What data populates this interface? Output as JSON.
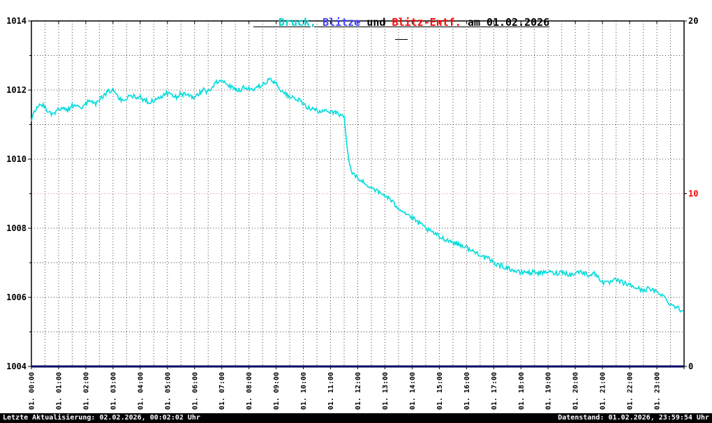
{
  "title": {
    "full": "Druck, Blitze und Blitz-Entf. am 01.02.2026",
    "parts": [
      {
        "text": "Druck,",
        "color": "#00cfcf"
      },
      {
        "text": " Blitze",
        "color": "#4040ff"
      },
      {
        "text": " und ",
        "color": "#000000"
      },
      {
        "text": "Blitz-Entf.",
        "color": "#ff0000"
      },
      {
        "text": " am 01.02.2026",
        "color": "#000000"
      }
    ]
  },
  "footer": {
    "left": "Letzte Aktualisierung: 02.02.2026, 00:02:02 Uhr",
    "right": "Datenstand: 01.02.2026, 23:59:54 Uhr"
  },
  "chart_data": {
    "type": "line",
    "title": "Druck, Blitze und Blitz-Entf. am 01.02.2026",
    "grid": "dotted",
    "x_axis": {
      "start_minute": 0,
      "end_minute": 1440,
      "grid_interval_minutes": 30,
      "tick_labels": [
        "01. 00:00",
        "01. 01:00",
        "01. 02:00",
        "01. 03:00",
        "01. 04:00",
        "01. 05:00",
        "01. 06:00",
        "01. 07:00",
        "01. 08:00",
        "01. 09:00",
        "01. 10:00",
        "01. 11:00",
        "01. 12:00",
        "01. 13:00",
        "01. 14:00",
        "01. 15:00",
        "01. 16:00",
        "01. 17:00",
        "01. 18:00",
        "01. 19:00",
        "01. 20:00",
        "01. 21:00",
        "01. 22:00",
        "01. 23:00"
      ]
    },
    "left_axis": {
      "min": 1004,
      "max": 1014,
      "grid_step": 1,
      "ticks": [
        1004,
        1006,
        1008,
        1010,
        1012,
        1014
      ]
    },
    "right_axis": {
      "min": 0,
      "max": 20,
      "ticks": [
        {
          "value": 0,
          "label": "0",
          "color": "#000000"
        },
        {
          "value": 10,
          "label": "10",
          "color": "#ff0000"
        },
        {
          "value": 20,
          "label": "20",
          "color": "#000000"
        }
      ],
      "highlight_tick": 10,
      "highlight_color": "#ee8888"
    },
    "series": [
      {
        "name": "Druck",
        "color": "#00dcdc",
        "axis": "left",
        "style": {
          "width": 1.6,
          "noise": 0.14
        },
        "points": [
          [
            0,
            1011.15
          ],
          [
            10,
            1011.45
          ],
          [
            20,
            1011.6
          ],
          [
            30,
            1011.5
          ],
          [
            40,
            1011.35
          ],
          [
            50,
            1011.3
          ],
          [
            60,
            1011.45
          ],
          [
            70,
            1011.5
          ],
          [
            80,
            1011.4
          ],
          [
            90,
            1011.55
          ],
          [
            100,
            1011.6
          ],
          [
            110,
            1011.5
          ],
          [
            120,
            1011.6
          ],
          [
            130,
            1011.7
          ],
          [
            140,
            1011.6
          ],
          [
            150,
            1011.7
          ],
          [
            160,
            1011.85
          ],
          [
            170,
            1011.95
          ],
          [
            180,
            1012.0
          ],
          [
            190,
            1011.8
          ],
          [
            200,
            1011.7
          ],
          [
            210,
            1011.75
          ],
          [
            220,
            1011.85
          ],
          [
            230,
            1011.8
          ],
          [
            240,
            1011.8
          ],
          [
            250,
            1011.7
          ],
          [
            260,
            1011.65
          ],
          [
            270,
            1011.7
          ],
          [
            280,
            1011.8
          ],
          [
            290,
            1011.85
          ],
          [
            300,
            1011.9
          ],
          [
            310,
            1011.85
          ],
          [
            320,
            1011.8
          ],
          [
            330,
            1011.9
          ],
          [
            340,
            1011.85
          ],
          [
            350,
            1011.8
          ],
          [
            360,
            1011.8
          ],
          [
            370,
            1011.9
          ],
          [
            380,
            1012.0
          ],
          [
            390,
            1011.95
          ],
          [
            400,
            1012.1
          ],
          [
            410,
            1012.25
          ],
          [
            420,
            1012.3
          ],
          [
            430,
            1012.2
          ],
          [
            440,
            1012.1
          ],
          [
            450,
            1012.05
          ],
          [
            460,
            1012.0
          ],
          [
            470,
            1012.1
          ],
          [
            480,
            1012.05
          ],
          [
            490,
            1012.0
          ],
          [
            500,
            1012.1
          ],
          [
            510,
            1012.15
          ],
          [
            520,
            1012.25
          ],
          [
            530,
            1012.3
          ],
          [
            540,
            1012.2
          ],
          [
            550,
            1012.0
          ],
          [
            560,
            1011.9
          ],
          [
            570,
            1011.8
          ],
          [
            580,
            1011.75
          ],
          [
            590,
            1011.7
          ],
          [
            600,
            1011.6
          ],
          [
            610,
            1011.5
          ],
          [
            620,
            1011.45
          ],
          [
            630,
            1011.4
          ],
          [
            640,
            1011.35
          ],
          [
            650,
            1011.4
          ],
          [
            660,
            1011.4
          ],
          [
            670,
            1011.35
          ],
          [
            680,
            1011.3
          ],
          [
            690,
            1011.25
          ],
          [
            696,
            1010.4
          ],
          [
            702,
            1009.8
          ],
          [
            708,
            1009.6
          ],
          [
            715,
            1009.5
          ],
          [
            720,
            1009.45
          ],
          [
            730,
            1009.35
          ],
          [
            740,
            1009.25
          ],
          [
            750,
            1009.2
          ],
          [
            760,
            1009.1
          ],
          [
            770,
            1009.0
          ],
          [
            780,
            1008.95
          ],
          [
            790,
            1008.85
          ],
          [
            800,
            1008.7
          ],
          [
            810,
            1008.6
          ],
          [
            820,
            1008.5
          ],
          [
            830,
            1008.4
          ],
          [
            840,
            1008.3
          ],
          [
            850,
            1008.2
          ],
          [
            860,
            1008.1
          ],
          [
            870,
            1008.0
          ],
          [
            880,
            1007.9
          ],
          [
            890,
            1007.85
          ],
          [
            900,
            1007.75
          ],
          [
            910,
            1007.7
          ],
          [
            920,
            1007.65
          ],
          [
            930,
            1007.6
          ],
          [
            940,
            1007.55
          ],
          [
            950,
            1007.5
          ],
          [
            960,
            1007.45
          ],
          [
            970,
            1007.35
          ],
          [
            980,
            1007.3
          ],
          [
            990,
            1007.25
          ],
          [
            1000,
            1007.15
          ],
          [
            1010,
            1007.1
          ],
          [
            1020,
            1007.0
          ],
          [
            1030,
            1006.95
          ],
          [
            1040,
            1006.9
          ],
          [
            1050,
            1006.85
          ],
          [
            1060,
            1006.8
          ],
          [
            1070,
            1006.75
          ],
          [
            1080,
            1006.7
          ],
          [
            1090,
            1006.75
          ],
          [
            1100,
            1006.7
          ],
          [
            1110,
            1006.75
          ],
          [
            1120,
            1006.7
          ],
          [
            1130,
            1006.7
          ],
          [
            1140,
            1006.75
          ],
          [
            1150,
            1006.7
          ],
          [
            1160,
            1006.7
          ],
          [
            1170,
            1006.75
          ],
          [
            1180,
            1006.7
          ],
          [
            1190,
            1006.65
          ],
          [
            1200,
            1006.7
          ],
          [
            1210,
            1006.75
          ],
          [
            1220,
            1006.7
          ],
          [
            1230,
            1006.65
          ],
          [
            1240,
            1006.7
          ],
          [
            1250,
            1006.6
          ],
          [
            1260,
            1006.45
          ],
          [
            1270,
            1006.4
          ],
          [
            1280,
            1006.45
          ],
          [
            1290,
            1006.5
          ],
          [
            1300,
            1006.45
          ],
          [
            1310,
            1006.4
          ],
          [
            1320,
            1006.35
          ],
          [
            1330,
            1006.3
          ],
          [
            1340,
            1006.25
          ],
          [
            1350,
            1006.2
          ],
          [
            1360,
            1006.25
          ],
          [
            1370,
            1006.2
          ],
          [
            1380,
            1006.15
          ],
          [
            1390,
            1006.1
          ],
          [
            1400,
            1005.95
          ],
          [
            1410,
            1005.8
          ],
          [
            1420,
            1005.75
          ],
          [
            1430,
            1005.65
          ],
          [
            1439,
            1005.6
          ]
        ]
      },
      {
        "name": "Blitze",
        "color": "#000066",
        "axis": "right",
        "style": {
          "width": 3
        },
        "points": [
          [
            0,
            0
          ],
          [
            1439,
            0
          ]
        ]
      },
      {
        "name": "Blitz-Entf.",
        "color": "#ff0000",
        "axis": "right",
        "points": []
      }
    ]
  }
}
